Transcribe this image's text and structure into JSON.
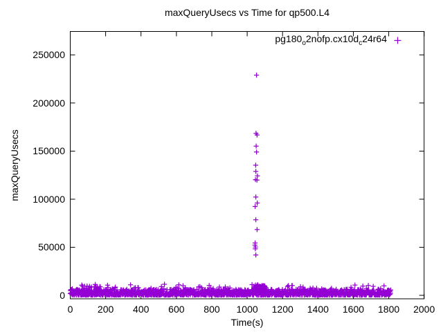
{
  "window": {
    "background_color": "#ffffff",
    "text_color": "#000000",
    "border_color": "#000000"
  },
  "chart_data": {
    "type": "scatter",
    "title": "maxQueryUsecs vs Time for qp500.L4",
    "xlabel": "Time(s)",
    "ylabel": "maxQueryUsecs",
    "xlim": [
      0,
      2000
    ],
    "ylim": [
      -3600,
      274400
    ],
    "xticks": [
      0,
      200,
      400,
      600,
      800,
      1000,
      1200,
      1400,
      1600,
      1800,
      2000
    ],
    "yticks": [
      0,
      50000,
      100000,
      150000,
      200000,
      250000
    ],
    "grid": false,
    "tick_style": "inward-mirrored",
    "legend_position": "top-right-inside",
    "series": [
      {
        "name": "pg180_o2nofp.cx10d_c24r64",
        "legend_rich_text": [
          {
            "t": "pg180",
            "sub": false
          },
          {
            "t": "o",
            "sub": true
          },
          {
            "t": "2nofp.cx10d",
            "sub": false
          },
          {
            "t": "c",
            "sub": true
          },
          {
            "t": "24r64",
            "sub": false
          }
        ],
        "color": "#9400D3",
        "marker": "plus",
        "spike_points": [
          [
            1053,
            229000
          ],
          [
            1050,
            168500
          ],
          [
            1056,
            166800
          ],
          [
            1051,
            155200
          ],
          [
            1053,
            149000
          ],
          [
            1048,
            135300
          ],
          [
            1049,
            128800
          ],
          [
            1058,
            124200
          ],
          [
            1047,
            120300
          ],
          [
            1055,
            119800
          ],
          [
            1049,
            102200
          ],
          [
            1057,
            96000
          ],
          [
            1045,
            92400
          ],
          [
            1049,
            78600
          ],
          [
            1056,
            68400
          ],
          [
            1045,
            54500
          ],
          [
            1044,
            52200
          ],
          [
            1047,
            50300
          ],
          [
            1046,
            48300
          ],
          [
            1049,
            42000
          ]
        ],
        "baseline_band": {
          "t_min": 0,
          "t_max": 1812,
          "count": 1500,
          "v_typical_min": 250,
          "v_typical_max": 6200,
          "v_outlier_max": 11500,
          "outlier_rate": 0.04
        },
        "elevated_clusters": [
          {
            "t_min": 55,
            "t_max": 180,
            "count": 50,
            "v_min": 2500,
            "v_max": 9800
          },
          {
            "t_min": 1035,
            "t_max": 1105,
            "count": 80,
            "v_min": 2500,
            "v_max": 10500
          }
        ]
      }
    ]
  }
}
